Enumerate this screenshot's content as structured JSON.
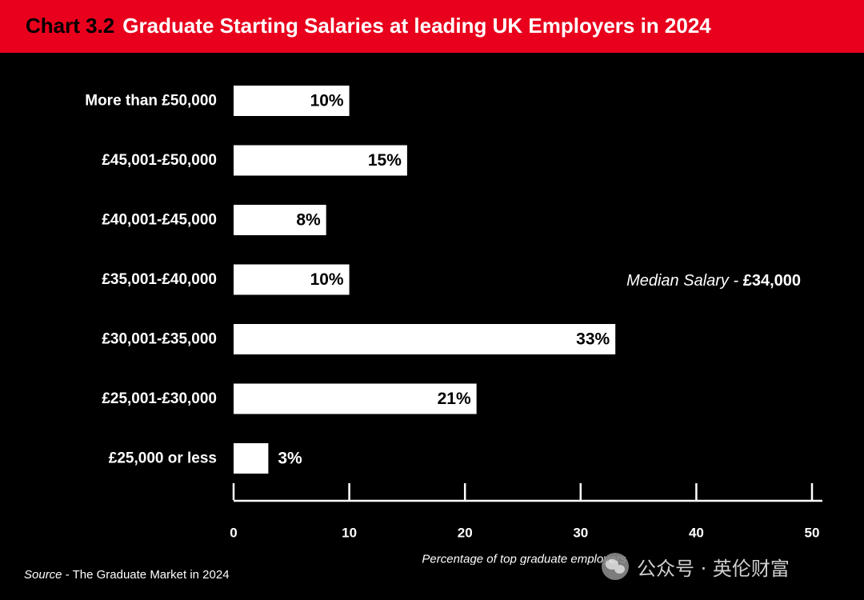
{
  "header": {
    "chart_number": "Chart 3.2",
    "title": "Graduate Starting Salaries at leading UK Employers in 2024"
  },
  "chart_data": {
    "type": "bar",
    "orientation": "horizontal",
    "categories": [
      "More than £50,000",
      "£45,001-£50,000",
      "£40,001-£45,000",
      "£35,001-£40,000",
      "£30,001-£35,000",
      "£25,001-£30,000",
      "£25,000 or less"
    ],
    "values": [
      10,
      15,
      8,
      10,
      33,
      21,
      3
    ],
    "data_labels": [
      "10%",
      "15%",
      "8%",
      "10%",
      "33%",
      "21%",
      "3%"
    ],
    "xlabel": "Percentage of top graduate employers",
    "xlim": [
      0,
      50
    ],
    "xticks": [
      0,
      10,
      20,
      30,
      40,
      50
    ],
    "grid": false,
    "annotation": {
      "prefix": "Median Salary - ",
      "value": "£34,000"
    },
    "colors": {
      "bar": "#ffffff",
      "background": "#000000",
      "accent": "#e8001c"
    }
  },
  "source": {
    "label": "Source",
    "text": " - The Graduate Market in 2024"
  },
  "watermark": {
    "text": "公众号 · 英伦财富",
    "icon": "wechat-icon"
  }
}
